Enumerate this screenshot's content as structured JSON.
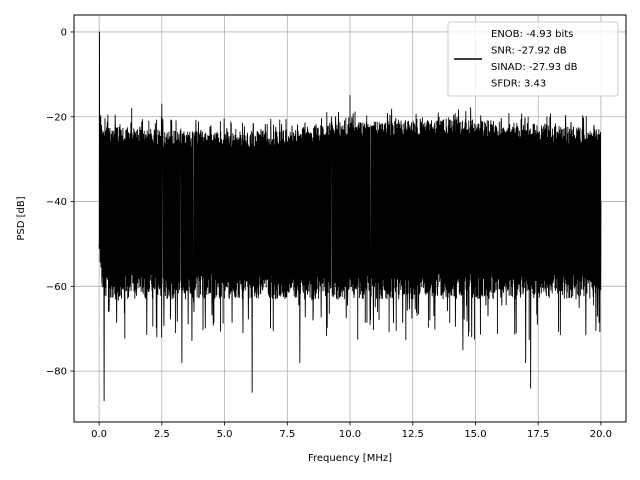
{
  "chart_data": {
    "type": "line",
    "xlabel": "Frequency [MHz]",
    "ylabel": "PSD [dB]",
    "xlim": [
      -1.0,
      21.0
    ],
    "ylim": [
      -92,
      4
    ],
    "x_ticks": [
      0.0,
      2.5,
      5.0,
      7.5,
      10.0,
      12.5,
      15.0,
      17.5,
      20.0
    ],
    "x_tick_labels": [
      "0.0",
      "2.5",
      "5.0",
      "7.5",
      "10.0",
      "12.5",
      "15.0",
      "17.5",
      "20.0"
    ],
    "y_ticks": [
      0,
      -20,
      -40,
      -60,
      -80
    ],
    "y_tick_labels": [
      "0",
      "−20",
      "−40",
      "−60",
      "−80"
    ],
    "grid": true,
    "legend_position": "top-right",
    "legend_entries": [
      "ENOB: -4.93 bits",
      "SNR: -27.92 dB",
      "SINAD: -27.93 dB",
      "SFDR: 3.43"
    ],
    "series": [
      {
        "color": "#000000",
        "style": "dense noise floor",
        "x_range": [
          0.0,
          20.0
        ],
        "noise_upper_envelope": -22,
        "noise_lower_envelope": -63,
        "x": [
          0.0,
          0.02,
          0.05,
          0.2,
          0.5,
          1.0,
          1.3,
          2.5,
          3.3,
          5.0,
          6.1,
          7.5,
          8.0,
          10.0,
          12.5,
          14.5,
          15.0,
          17.0,
          17.2,
          17.5,
          18.5,
          20.0
        ],
        "y": [
          -50,
          0,
          -30,
          -87,
          -40,
          -35,
          -18,
          -17,
          -78,
          -35,
          -85,
          -40,
          -78,
          -15,
          -40,
          -75,
          -40,
          -78,
          -84,
          -40,
          -30,
          -40
        ]
      }
    ]
  }
}
